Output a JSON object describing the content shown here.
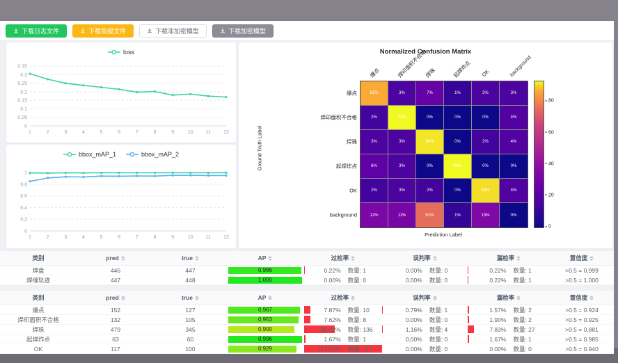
{
  "toolbar": {
    "buttons": [
      {
        "label": "下载日志文件",
        "bg": "#22c55e",
        "fg": "#ffffff",
        "border": "#22c55e"
      },
      {
        "label": "下载简报文件",
        "bg": "#fbb713",
        "fg": "#ffffff",
        "border": "#fbb713"
      },
      {
        "label": "下载非加密模型",
        "bg": "#ffffff",
        "fg": "#666b74",
        "border": "#dcdfe6"
      },
      {
        "label": "下载加密模型",
        "bg": "#8f8c99",
        "fg": "#ffffff",
        "border": "#85828f"
      }
    ]
  },
  "chart_data": [
    {
      "type": "line",
      "title": "loss curve",
      "legend_position": "top",
      "x": [
        1,
        2,
        3,
        4,
        5,
        6,
        7,
        8,
        9,
        10,
        11,
        12
      ],
      "series": [
        {
          "name": "loss",
          "color": "#3dd2a6",
          "values": [
            0.305,
            0.273,
            0.249,
            0.237,
            0.226,
            0.214,
            0.197,
            0.201,
            0.18,
            0.186,
            0.174,
            0.169
          ]
        }
      ],
      "ylim": [
        0,
        0.35
      ],
      "yticks": [
        0,
        0.05,
        0.1,
        0.15,
        0.2,
        0.25,
        0.3,
        0.35
      ],
      "grid": "dashed-horizontal"
    },
    {
      "type": "line",
      "title": "bbox mAP curves",
      "legend_position": "top",
      "x": [
        1,
        2,
        3,
        4,
        5,
        6,
        7,
        8,
        9,
        10,
        11,
        12
      ],
      "series": [
        {
          "name": "bbox_mAP_1",
          "color": "#3dd2a6",
          "values": [
            0.995,
            0.992,
            0.996,
            0.994,
            0.997,
            0.998,
            0.998,
            0.998,
            0.997,
            0.998,
            0.998,
            0.998
          ]
        },
        {
          "name": "bbox_mAP_2",
          "color": "#5ab1ef",
          "values": [
            0.85,
            0.908,
            0.928,
            0.925,
            0.94,
            0.938,
            0.943,
            0.94,
            0.952,
            0.953,
            0.95,
            0.95
          ]
        }
      ],
      "ylim": [
        0,
        1.05
      ],
      "yticks": [
        0,
        0.2,
        0.4,
        0.6,
        0.8,
        1
      ],
      "grid": "dashed-horizontal"
    },
    {
      "type": "heatmap",
      "title": "Normalized Confusion Matrix",
      "xlabel": "Prediction Label",
      "ylabel": "Ground Truth Label",
      "labels": [
        "爆点",
        "焊印面积不合格",
        "焊珠",
        "起焊炸点",
        "OK",
        "background"
      ],
      "values_percent": [
        [
          81,
          3,
          7,
          1,
          3,
          3
        ],
        [
          2,
          93,
          0,
          0,
          0,
          4
        ],
        [
          3,
          3,
          90,
          0,
          2,
          4
        ],
        [
          6,
          3,
          0,
          93,
          0,
          0
        ],
        [
          2,
          3,
          2,
          0,
          89,
          4
        ],
        [
          12,
          11,
          61,
          1,
          13,
          0
        ]
      ],
      "vmax": 93,
      "colormap": "plasma",
      "colorbar_ticks": [
        0,
        20,
        40,
        60,
        80
      ]
    }
  ],
  "tables": {
    "columns": [
      "类别",
      "pred",
      "true",
      "AP",
      "过检率",
      "误判率",
      "漏检率",
      "置信度"
    ],
    "quantity_label": "数量:",
    "bar_red": "#f53540",
    "groups": [
      {
        "rows": [
          {
            "label": "焊盘",
            "pred": 446,
            "true": 447,
            "ap": 0.986,
            "over_pct": 0.22,
            "over_cnt": 1,
            "mis_pct": 0.0,
            "mis_cnt": 0,
            "miss_pct": 0.22,
            "miss_cnt": 1,
            "conf": ">0.5 = 0.999"
          },
          {
            "label": "焊缝轨迹",
            "pred": 447,
            "true": 448,
            "ap": 1.0,
            "over_pct": 0.0,
            "over_cnt": 0,
            "mis_pct": 0.0,
            "mis_cnt": 0,
            "miss_pct": 0.22,
            "miss_cnt": 1,
            "conf": ">0.5 = 1.000"
          }
        ]
      },
      {
        "rows": [
          {
            "label": "爆点",
            "pred": 152,
            "true": 127,
            "ap": 0.967,
            "over_pct": 7.87,
            "over_cnt": 10,
            "mis_pct": 0.79,
            "mis_cnt": 1,
            "miss_pct": 1.57,
            "miss_cnt": 2,
            "conf": ">0.5 = 0.924"
          },
          {
            "label": "焊印面积不合格",
            "pred": 132,
            "true": 105,
            "ap": 0.953,
            "over_pct": 7.62,
            "over_cnt": 8,
            "mis_pct": 0.0,
            "mis_cnt": 0,
            "miss_pct": 1.9,
            "miss_cnt": 2,
            "conf": ">0.5 = 0.925"
          },
          {
            "label": "焊珠",
            "pred": 479,
            "true": 345,
            "ap": 0.9,
            "over_pct": 39.42,
            "over_cnt": 136,
            "mis_pct": 1.16,
            "mis_cnt": 4,
            "miss_pct": 7.83,
            "miss_cnt": 27,
            "conf": ">0.5 = 0.881"
          },
          {
            "label": "起焊炸点",
            "pred": 63,
            "true": 60,
            "ap": 0.996,
            "over_pct": 1.67,
            "over_cnt": 1,
            "mis_pct": 0.0,
            "mis_cnt": 0,
            "miss_pct": 1.67,
            "miss_cnt": 1,
            "conf": ">0.5 = 0.985"
          },
          {
            "label": "OK",
            "pred": 117,
            "true": 100,
            "ap": 0.929,
            "over_pct": 117.0,
            "over_cnt": 117,
            "mis_pct": 0.0,
            "mis_cnt": 0,
            "miss_pct": 0.0,
            "miss_cnt": 0,
            "conf": ">0.5 = 0.940"
          }
        ]
      }
    ]
  }
}
